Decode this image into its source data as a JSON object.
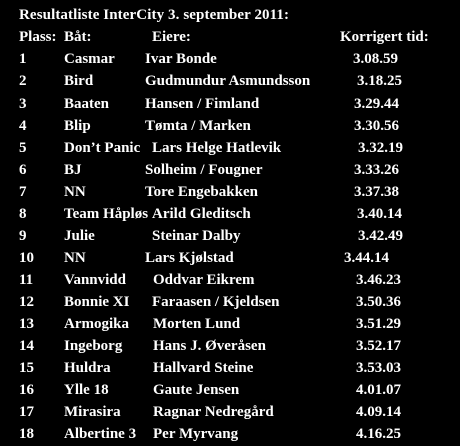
{
  "title": "Resultatliste InterCity 3. september 2011:",
  "headers": {
    "place": "Plass:",
    "boat": "Båt:",
    "owners": "Eiere:",
    "time": "Korrigert tid:"
  },
  "rows": [
    {
      "place": "1",
      "boat": "Casmar",
      "owners": "Ivar Bonde",
      "time": "3.08.59"
    },
    {
      "place": "2",
      "boat": "Bird",
      "owners": "Gudmundur Asmundsson",
      "time": "3.18.25"
    },
    {
      "place": "3",
      "boat": "Baaten",
      "owners": "Hansen / Fimland",
      "time": "3.29.44"
    },
    {
      "place": "4",
      "boat": "Blip",
      "owners": "Tømta / Marken",
      "time": "3.30.56"
    },
    {
      "place": "5",
      "boat": "Don’t Panic",
      "owners": "Lars Helge Hatlevik",
      "time": "3.32.19"
    },
    {
      "place": "6",
      "boat": "BJ",
      "owners": "Solheim / Fougner",
      "time": "3.33.26"
    },
    {
      "place": "7",
      "boat": "NN",
      "owners": "Tore Engebakken",
      "time": "3.37.38"
    },
    {
      "place": "8",
      "boat": "Team Håpløs",
      "owners": "Arild Gleditsch",
      "time": "3.40.14"
    },
    {
      "place": "9",
      "boat": "Julie",
      "owners": "Steinar Dalby",
      "time": "3.42.49"
    },
    {
      "place": "10",
      "boat": "NN",
      "owners": "Lars Kjølstad",
      "time": "3.44.14"
    },
    {
      "place": "11",
      "boat": "Vannvidd",
      "owners": "Oddvar Eikrem",
      "time": "3.46.23"
    },
    {
      "place": "12",
      "boat": "Bonnie XI",
      "owners": "Faraasen / Kjeldsen",
      "time": "3.50.36"
    },
    {
      "place": "13",
      "boat": "Armogika",
      "owners": "Morten Lund",
      "time": "3.51.29"
    },
    {
      "place": "14",
      "boat": "Ingeborg",
      "owners": "Hans J. Øveråsen",
      "time": "3.52.17"
    },
    {
      "place": "15",
      "boat": "Huldra",
      "owners": "Hallvard Steine",
      "time": "3.53.03"
    },
    {
      "place": "16",
      "boat": "Ylle 18",
      "owners": "Gaute Jensen",
      "time": "4.01.07"
    },
    {
      "place": "17",
      "boat": "Mirasira",
      "owners": "Ragnar Nedregård",
      "time": "4.09.14"
    },
    {
      "place": "18",
      "boat": "Albertine 3",
      "owners": "Per Myrvang",
      "time": "4.16.25"
    }
  ],
  "colors": {
    "background": "#000000",
    "text": "#ffffff"
  }
}
